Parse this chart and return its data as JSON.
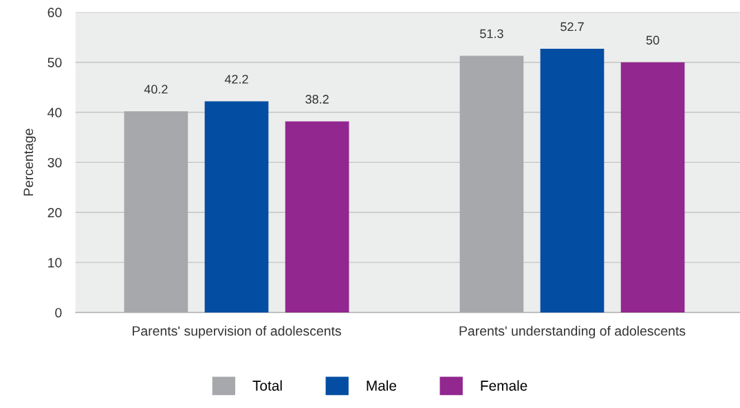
{
  "chart_data": {
    "type": "bar",
    "ylabel": "Percentage",
    "categories": [
      "Parents' supervision of adolescents",
      "Parents' understanding of adolescents"
    ],
    "series": [
      {
        "name": "Total",
        "color": "#a7a8ab",
        "values": [
          40.2,
          51.3
        ]
      },
      {
        "name": "Male",
        "color": "#034ea2",
        "values": [
          42.2,
          52.7
        ]
      },
      {
        "name": "Female",
        "color": "#92278f",
        "values": [
          38.2,
          50
        ]
      }
    ],
    "ylim": [
      0,
      60
    ],
    "yticks": [
      0,
      10,
      20,
      30,
      40,
      50,
      60
    ],
    "grid": "y",
    "legend": "bottom",
    "data_labels": true
  }
}
